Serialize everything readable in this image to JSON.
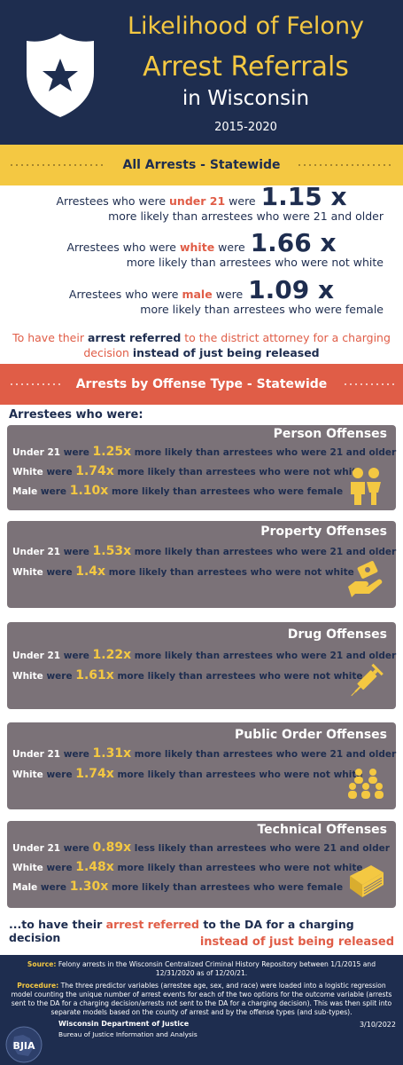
{
  "header": {
    "title_line1": "Likelihood of Felony",
    "title_line2": "Arrest Referrals",
    "title_line3": "in Wisconsin",
    "years": "2015-2020"
  },
  "statewide": {
    "banner": "All Arrests - Statewide",
    "stats": [
      {
        "prefix": "Arrestees who were",
        "group": "under 21",
        "suffix": "were",
        "multiplier": "1.15 x",
        "comparison": "more likely than arrestees who were 21 and older"
      },
      {
        "prefix": "Arrestees who were",
        "group": "white",
        "suffix": "were",
        "multiplier": "1.66 x",
        "comparison": "more likely than arrestees who were not white"
      },
      {
        "prefix": "Arrestees who were",
        "group": "male",
        "suffix": "were",
        "multiplier": "1.09 x",
        "comparison": "more likely than arrestees who were female"
      }
    ],
    "conclusion_a": "To have their",
    "conclusion_b": "arrest referred",
    "conclusion_c": "to the district attorney for a charging decision",
    "conclusion_d": "instead of just being released"
  },
  "offense": {
    "banner": "Arrests by Offense Type - Statewide",
    "intro": "Arrestees who were:",
    "cards": [
      {
        "title": "Person Offenses",
        "icon": "people-icon",
        "rows": [
          {
            "group": "Under 21",
            "were": "were",
            "mult": "1.25x",
            "text": "more likely than arrestees who were 21 and older"
          },
          {
            "group": "White",
            "were": "were",
            "mult": "1.74x",
            "text": "more likely than arrestees who were not white"
          },
          {
            "group": "Male",
            "were": "were",
            "mult": "1.10x",
            "text": "more likely than arrestees who were female"
          }
        ]
      },
      {
        "title": "Property Offenses",
        "icon": "hand-money-icon",
        "rows": [
          {
            "group": "Under 21",
            "were": "were",
            "mult": "1.53x",
            "text": "more likely than arrestees who were 21 and older"
          },
          {
            "group": "White",
            "were": "were",
            "mult": "1.4x",
            "text": "more likely than arrestees who were not white"
          }
        ]
      },
      {
        "title": "Drug Offenses",
        "icon": "syringe-icon",
        "rows": [
          {
            "group": "Under 21",
            "were": "were",
            "mult": "1.22x",
            "text": "more likely than arrestees who were 21 and older"
          },
          {
            "group": "White",
            "were": "were",
            "mult": "1.61x",
            "text": "more likely than arrestees who were not white"
          }
        ]
      },
      {
        "title": "Public Order Offenses",
        "icon": "crowd-icon",
        "rows": [
          {
            "group": "Under 21",
            "were": "were",
            "mult": "1.31x",
            "text": "more likely than arrestees who were 21 and older"
          },
          {
            "group": "White",
            "were": "were",
            "mult": "1.74x",
            "text": "more likely than arrestees who were not white"
          }
        ]
      },
      {
        "title": "Technical Offenses",
        "icon": "book-icon",
        "rows": [
          {
            "group": "Under 21",
            "were": "were",
            "mult": "0.89x",
            "text": "less likely than arrestees who were 21 and older"
          },
          {
            "group": "White",
            "were": "were",
            "mult": "1.48x",
            "text": "more likely than arrestees who were not white"
          },
          {
            "group": "Male",
            "were": "were",
            "mult": "1.30x",
            "text": "more likely than arrestees who were female"
          }
        ]
      }
    ],
    "closing_a": "...to have their",
    "closing_b": "arrest referred",
    "closing_c": "to the DA for a charging decision",
    "closing_d": "instead of just being released"
  },
  "footer": {
    "source_label": "Source:",
    "source_text": "Felony arrests in the Wisconsin Centralized Criminal History Repository between 1/1/2015 and 12/31/2020 as of 12/20/21.",
    "procedure_label": "Procedure:",
    "procedure_text": "The three predictor variables (arrestee age, sex, and race) were loaded into a logistic regression model counting the unique number of arrest events for each of the two options for the outcome variable (arrests sent to the DA for a charging decision/arrests not sent to the DA for a charging decision). This was then split into separate models based on the county of arrest and by the offense types (and sub-types).",
    "logo_text": "BJIA",
    "org": "Wisconsin Department of Justice",
    "bureau": "Bureau of Justice Information and Analysis",
    "date": "3/10/2022"
  },
  "colors": {
    "navy": "#1e2d4f",
    "gold": "#f4c842",
    "coral": "#e05d47",
    "card_gray": "#7b7278"
  }
}
